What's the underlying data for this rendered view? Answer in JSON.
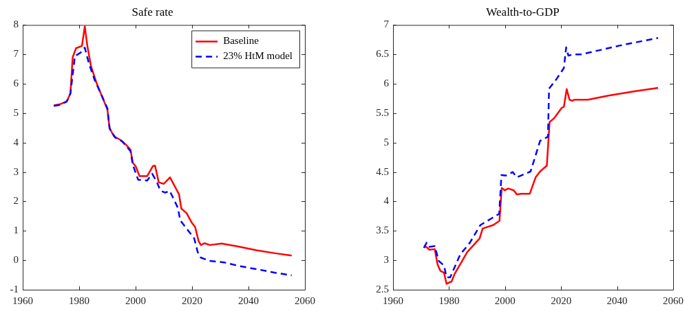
{
  "chart_data": [
    {
      "type": "line",
      "title": "Safe rate",
      "xlim": [
        1960,
        2060
      ],
      "xticks": [
        1960,
        1980,
        2000,
        2020,
        2040,
        2060
      ],
      "ylim": [
        -1,
        8
      ],
      "yticks": [
        -1,
        0,
        1,
        2,
        3,
        4,
        5,
        6,
        7,
        8
      ],
      "legend": "top right",
      "marker": "none",
      "series": [
        {
          "name": "Baseline",
          "color": "#ff0000",
          "line_style": "solid",
          "x": [
            1971,
            1973,
            1975.6,
            1976.9,
            1977.7,
            1978.9,
            1981,
            1982,
            1982.9,
            1984.2,
            1986.3,
            1990,
            1990.8,
            1992.4,
            1994.5,
            1996.5,
            1998.2,
            1999,
            2000,
            2001.4,
            2004.1,
            2006.1,
            2006.9,
            2008.2,
            2010,
            2012.2,
            2015.4,
            2016.2,
            2018.1,
            2019.9,
            2021.1,
            2022.3,
            2023.1,
            2024.4,
            2026.3,
            2030.5,
            2036.3,
            2042.8,
            2049.4,
            2055.3
          ],
          "values": [
            5.27,
            5.3,
            5.4,
            5.67,
            6.9,
            7.21,
            7.29,
            7.95,
            7.29,
            6.6,
            5.99,
            5.13,
            4.48,
            4.21,
            4.1,
            3.94,
            3.76,
            3.32,
            3.2,
            2.86,
            2.86,
            3.2,
            3.22,
            2.65,
            2.6,
            2.82,
            2.24,
            1.76,
            1.6,
            1.28,
            1.13,
            0.66,
            0.52,
            0.58,
            0.52,
            0.57,
            0.47,
            0.34,
            0.24,
            0.16
          ]
        },
        {
          "name": "23% HtM model",
          "color": "#0000ff",
          "line_style": "dashed",
          "x": [
            1971,
            1973,
            1975.6,
            1976.9,
            1978.5,
            1980.5,
            1982,
            1983.4,
            1985.5,
            1988,
            1990,
            1990.8,
            1992.8,
            1995.2,
            1998.2,
            1999,
            2000.9,
            2004.1,
            2005.9,
            2007.5,
            2008.8,
            2010.5,
            2012.1,
            2015,
            2015.8,
            2018.3,
            2020.8,
            2022,
            2023.1,
            2026.4,
            2031.3,
            2037,
            2042.8,
            2049.4,
            2055.3
          ],
          "values": [
            5.25,
            5.28,
            5.4,
            5.67,
            6.94,
            7.06,
            7.23,
            6.71,
            6.13,
            5.6,
            5.17,
            4.48,
            4.17,
            4.05,
            3.71,
            3.25,
            2.74,
            2.71,
            2.94,
            2.67,
            2.37,
            2.3,
            2.36,
            1.78,
            1.36,
            1.05,
            0.74,
            0.28,
            0.09,
            -0.02,
            -0.07,
            -0.2,
            -0.3,
            -0.42,
            -0.51
          ]
        }
      ]
    },
    {
      "type": "line",
      "title": "Wealth-to-GDP",
      "xlim": [
        1960,
        2060
      ],
      "xticks": [
        1960,
        1980,
        2000,
        2020,
        2040,
        2060
      ],
      "ylim": [
        2.5,
        7
      ],
      "yticks": [
        2.5,
        3,
        3.5,
        4,
        4.5,
        5,
        5.5,
        6,
        6.5,
        7
      ],
      "marker": "none",
      "series": [
        {
          "color": "#ff0000",
          "line_style": "solid",
          "x": [
            1971,
            1971.8,
            1973,
            1974.9,
            1975.9,
            1976.9,
            1978.2,
            1979.1,
            1980.9,
            1982,
            1986.5,
            1990.9,
            1992,
            1995.8,
            1998,
            1998.8,
            1999.9,
            2001.1,
            2003.1,
            2004.2,
            2005.8,
            2008.8,
            2010.9,
            2012.5,
            2014.9,
            2015.9,
            2017.4,
            2020.2,
            2021,
            2022,
            2023,
            2024,
            2024.8,
            2029.6,
            2036.9,
            2045.8,
            2054.6
          ],
          "values": [
            3.23,
            3.23,
            3.18,
            3.19,
            2.93,
            2.82,
            2.79,
            2.6,
            2.64,
            2.77,
            3.14,
            3.37,
            3.54,
            3.6,
            3.67,
            4.23,
            4.19,
            4.22,
            4.19,
            4.12,
            4.13,
            4.13,
            4.41,
            4.51,
            4.61,
            5.35,
            5.41,
            5.59,
            5.61,
            5.91,
            5.73,
            5.71,
            5.73,
            5.73,
            5.8,
            5.87,
            5.93
          ]
        },
        {
          "color": "#0000ff",
          "line_style": "dashed",
          "x": [
            1971,
            1972,
            1973,
            1974.9,
            1976.3,
            1978.2,
            1979.1,
            1980.4,
            1984,
            1987.3,
            1991.2,
            1997.9,
            1998.7,
            2000.3,
            2002.7,
            2004.2,
            2009.1,
            2012.5,
            2015.3,
            2015.7,
            2018.2,
            2021,
            2021.8,
            2022.6,
            2024.3,
            2027.1,
            2040.9,
            2054.6
          ],
          "values": [
            3.21,
            3.3,
            3.23,
            3.24,
            2.99,
            2.91,
            2.71,
            2.71,
            3.1,
            3.29,
            3.6,
            3.79,
            4.45,
            4.44,
            4.5,
            4.41,
            4.51,
            5.03,
            5.1,
            5.92,
            6.07,
            6.27,
            6.62,
            6.48,
            6.5,
            6.5,
            6.65,
            6.78
          ]
        }
      ]
    }
  ]
}
